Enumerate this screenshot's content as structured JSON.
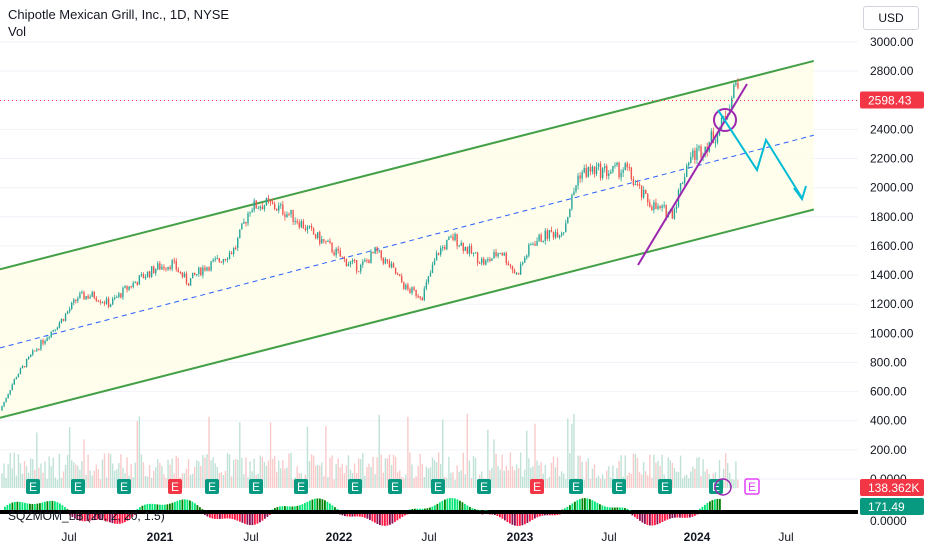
{
  "header": {
    "symbol_line": "Chipotle Mexican Grill, Inc., 1D, NYSE",
    "vol_label": "Vol",
    "currency": "USD"
  },
  "indicator": {
    "label": "SQZMOM_LB (20, 2, 20, 1.5)"
  },
  "chart_data": {
    "type": "line",
    "x_ticks": [
      "Jul",
      "2021",
      "Jul",
      "2022",
      "Jul",
      "2023",
      "Jul",
      "2024",
      "Jul"
    ],
    "y_ticks": [
      "3000.00",
      "2800.00",
      "2600.00",
      "2400.00",
      "2200.00",
      "2000.00",
      "1800.00",
      "1600.00",
      "1400.00",
      "1200.00",
      "1000.00",
      "800.00",
      "600.00",
      "400.00",
      "200.00",
      "0.0000"
    ],
    "ylim": [
      0,
      3000
    ],
    "price_series": {
      "dates": [
        "2020-03",
        "2020-04",
        "2020-05",
        "2020-06",
        "2020-07",
        "2020-08",
        "2020-09",
        "2020-10",
        "2020-11",
        "2020-12",
        "2021-01",
        "2021-02",
        "2021-03",
        "2021-04",
        "2021-05",
        "2021-06",
        "2021-07",
        "2021-08",
        "2021-09",
        "2021-10",
        "2021-11",
        "2021-12",
        "2022-01",
        "2022-02",
        "2022-03",
        "2022-04",
        "2022-05",
        "2022-06",
        "2022-07",
        "2022-08",
        "2022-09",
        "2022-10",
        "2022-11",
        "2022-12",
        "2023-01",
        "2023-02",
        "2023-03",
        "2023-04",
        "2023-05",
        "2023-06",
        "2023-07",
        "2023-08",
        "2023-09",
        "2023-10",
        "2023-11",
        "2023-12",
        "2024-01",
        "2024-02"
      ],
      "close": [
        470,
        700,
        850,
        980,
        1100,
        1250,
        1260,
        1200,
        1300,
        1380,
        1450,
        1480,
        1350,
        1450,
        1500,
        1580,
        1870,
        1890,
        1850,
        1780,
        1680,
        1600,
        1500,
        1450,
        1560,
        1450,
        1300,
        1260,
        1560,
        1660,
        1560,
        1480,
        1570,
        1400,
        1620,
        1680,
        1710,
        2100,
        2120,
        2110,
        2130,
        1950,
        1850,
        1830,
        2200,
        2280,
        2400,
        2700
      ]
    },
    "last_price": "2598.43",
    "volume_last": "138.362K",
    "squeeze_value": "171.49",
    "squeeze_zero": "0.0000",
    "earnings_markers": [
      "E",
      "E",
      "E",
      "E",
      "E",
      "E",
      "E",
      "E",
      "E",
      "E",
      "E",
      "E",
      "E",
      "E",
      "E",
      "E"
    ],
    "channel": {
      "upper": [
        [
          "2020-03",
          1440
        ],
        [
          "2024-07",
          2870
        ]
      ],
      "lower": [
        [
          "2020-03",
          420
        ],
        [
          "2024-07",
          1850
        ]
      ],
      "mid": [
        [
          "2020-03",
          900
        ],
        [
          "2024-07",
          2360
        ]
      ]
    },
    "colors": {
      "channel": "#43a047",
      "fill": "#fffde7",
      "midline": "#2962ff",
      "purple_line": "#9c27b0",
      "forecast": "#00bcd4",
      "up": "#26a69a",
      "down": "#ef5350",
      "price_tag": "#f23645",
      "volume_tag": "#f23645",
      "squeeze_tag": "#089981",
      "earnings_positive": "#089981",
      "earnings_negative": "#f23645",
      "earnings_future": "#e040fb"
    }
  }
}
